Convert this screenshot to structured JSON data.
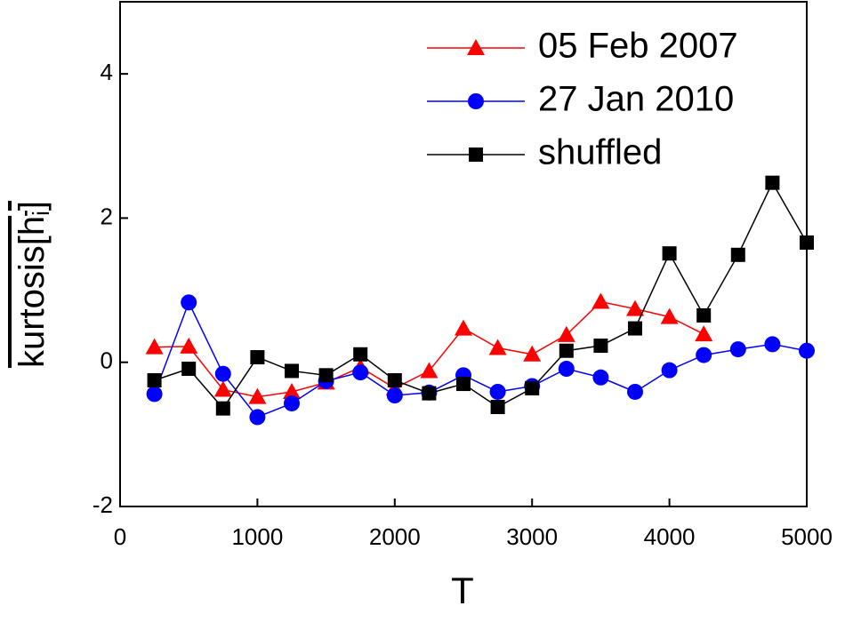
{
  "chart_data": {
    "type": "line",
    "x_label": "T",
    "y_label": [
      "kurtosis[h",
      "i",
      "]"
    ],
    "xlim": [
      0,
      5000
    ],
    "xticks": [
      0,
      1000,
      2000,
      3000,
      4000,
      5000
    ],
    "ylim": [
      -2,
      5
    ],
    "yticks": [
      -2,
      0,
      2,
      4
    ],
    "legend": "upper right",
    "series": [
      {
        "name": "05 Feb 2007",
        "color": "#ff0000",
        "marker": "triangle",
        "x": [
          250,
          500,
          750,
          1000,
          1250,
          1500,
          1750,
          2000,
          2250,
          2500,
          2750,
          3000,
          3250,
          3500,
          3750,
          4000,
          4250
        ],
        "values": [
          0.21,
          0.22,
          -0.38,
          -0.48,
          -0.41,
          -0.28,
          -0.07,
          -0.36,
          -0.12,
          0.47,
          0.2,
          0.11,
          0.38,
          0.84,
          0.74,
          0.63,
          0.39
        ]
      },
      {
        "name": "27 Jan 2010",
        "color": "#0000ff",
        "marker": "circle",
        "x": [
          250,
          500,
          750,
          1000,
          1250,
          1500,
          1750,
          2000,
          2250,
          2500,
          2750,
          3000,
          3250,
          3500,
          3750,
          4000,
          4250,
          4500,
          4750,
          5000
        ],
        "values": [
          -0.44,
          0.83,
          -0.16,
          -0.76,
          -0.57,
          -0.26,
          -0.14,
          -0.46,
          -0.42,
          -0.18,
          -0.41,
          -0.33,
          -0.09,
          -0.21,
          -0.41,
          -0.11,
          0.1,
          0.18,
          0.25,
          0.16
        ]
      },
      {
        "name": "shuffled",
        "color": "#000000",
        "marker": "square",
        "x": [
          250,
          500,
          750,
          1000,
          1250,
          1500,
          1750,
          2000,
          2250,
          2500,
          2750,
          3000,
          3250,
          3500,
          3750,
          4000,
          4250,
          4500,
          4750,
          5000
        ],
        "values": [
          -0.25,
          -0.09,
          -0.64,
          0.07,
          -0.12,
          -0.18,
          0.11,
          -0.25,
          -0.43,
          -0.3,
          -0.62,
          -0.36,
          0.16,
          0.23,
          0.47,
          1.51,
          0.65,
          1.49,
          2.49,
          1.66
        ]
      }
    ]
  }
}
